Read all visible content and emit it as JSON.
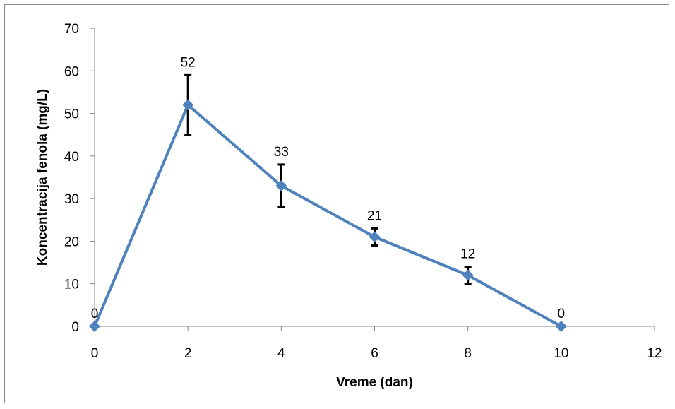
{
  "chart_data": {
    "type": "line",
    "title": "",
    "xlabel": "Vreme (dan)",
    "ylabel": "Koncentracija fenola (mg/L)",
    "xlim": [
      0,
      12
    ],
    "ylim": [
      0,
      70
    ],
    "xticks": [
      0,
      2,
      4,
      6,
      8,
      10,
      12
    ],
    "yticks": [
      0,
      10,
      20,
      30,
      40,
      50,
      60,
      70
    ],
    "grid": false,
    "legend": "none",
    "series": [
      {
        "color": "#4f81bd",
        "marker": "diamond",
        "x": [
          0,
          2,
          4,
          6,
          8,
          10
        ],
        "y": [
          0,
          52,
          33,
          21,
          12,
          0
        ],
        "error": [
          null,
          7,
          5,
          2,
          2,
          null
        ],
        "data_labels": [
          "0",
          "52",
          "33",
          "21",
          "12",
          "0"
        ]
      }
    ]
  }
}
